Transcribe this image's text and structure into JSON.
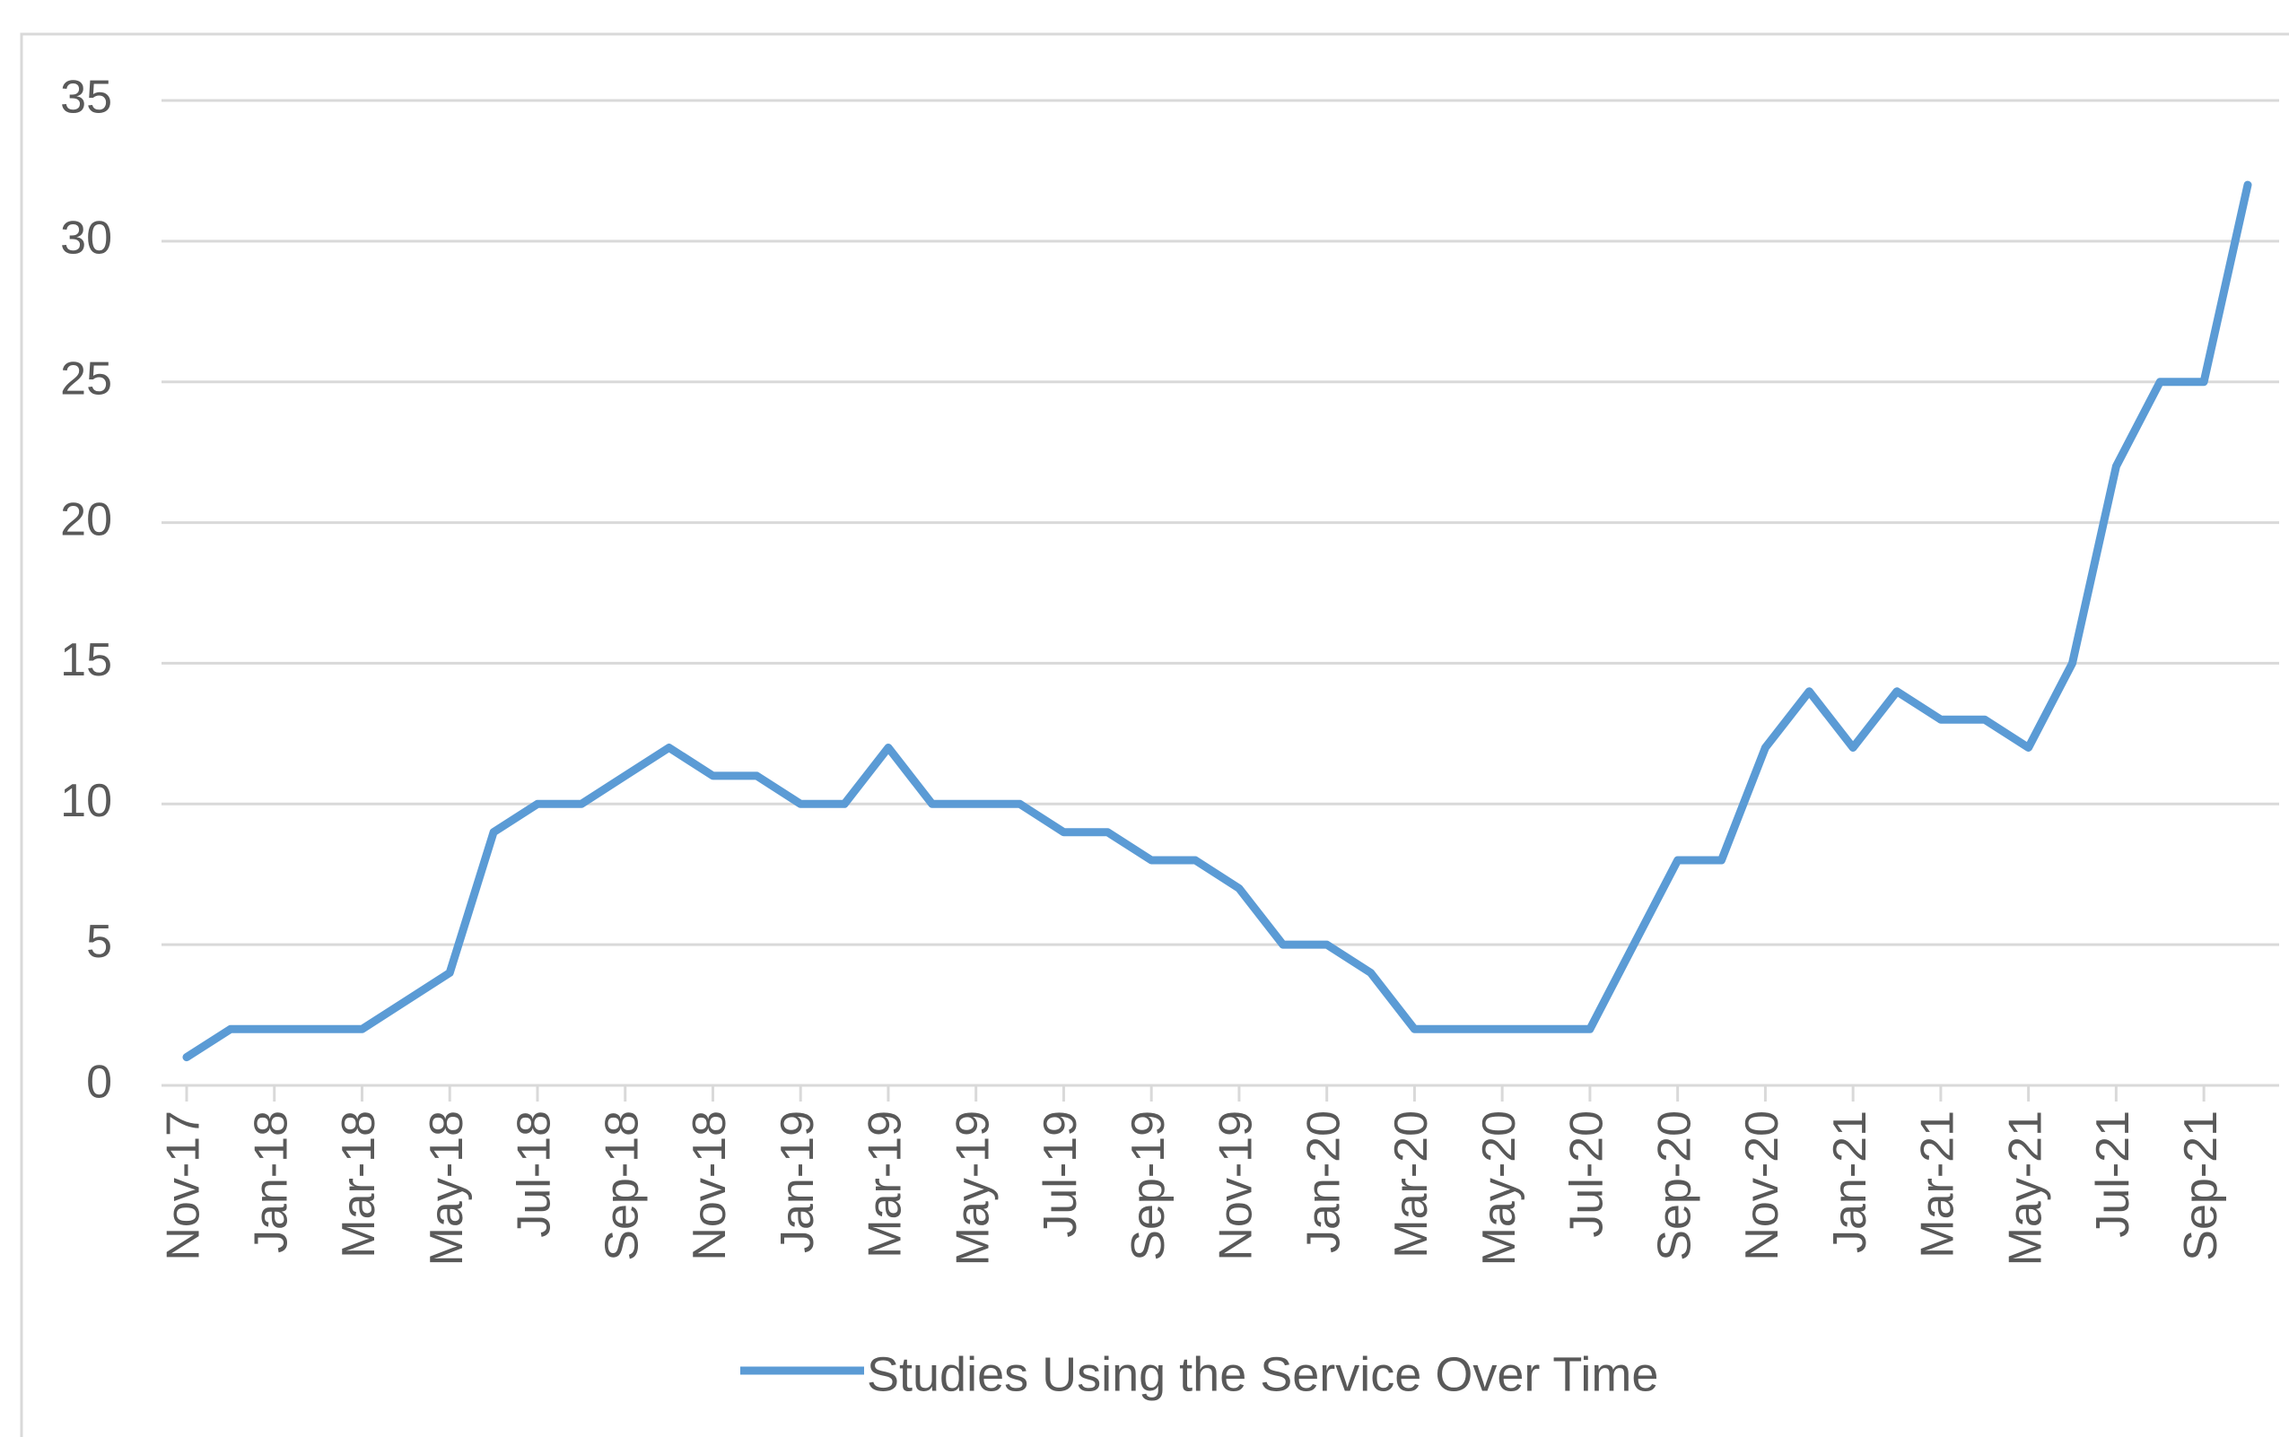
{
  "chart_data": {
    "type": "line",
    "title": "",
    "xlabel": "",
    "ylabel": "",
    "ylim": [
      0,
      35
    ],
    "yticks": [
      0,
      5,
      10,
      15,
      20,
      25,
      30,
      35
    ],
    "grid": "horizontal",
    "legend_position": "bottom",
    "x_labels": [
      "Nov-17",
      "Jan-18",
      "Mar-18",
      "May-18",
      "Jul-18",
      "Sep-18",
      "Nov-18",
      "Jan-19",
      "Mar-19",
      "May-19",
      "Jul-19",
      "Sep-19",
      "Nov-19",
      "Jan-20",
      "Mar-20",
      "May-20",
      "Jul-20",
      "Sep-20",
      "Nov-20",
      "Jan-21",
      "Mar-21",
      "May-21",
      "Jul-21",
      "Sep-21"
    ],
    "x": [
      "Nov-17",
      "Dec-17",
      "Jan-18",
      "Feb-18",
      "Mar-18",
      "Apr-18",
      "May-18",
      "Jun-18",
      "Jul-18",
      "Aug-18",
      "Sep-18",
      "Oct-18",
      "Nov-18",
      "Dec-18",
      "Jan-19",
      "Feb-19",
      "Mar-19",
      "Apr-19",
      "May-19",
      "Jun-19",
      "Jul-19",
      "Aug-19",
      "Sep-19",
      "Oct-19",
      "Nov-19",
      "Dec-19",
      "Jan-20",
      "Feb-20",
      "Mar-20",
      "Apr-20",
      "May-20",
      "Jun-20",
      "Jul-20",
      "Aug-20",
      "Sep-20",
      "Oct-20",
      "Nov-20",
      "Dec-20",
      "Jan-21",
      "Feb-21",
      "Mar-21",
      "Apr-21",
      "May-21",
      "Jun-21",
      "Jul-21",
      "Aug-21",
      "Sep-21",
      "Oct-21"
    ],
    "series": [
      {
        "name": "Studies Using the Service Over Time",
        "color": "#5b9bd5",
        "values": [
          1,
          2,
          2,
          2,
          2,
          3,
          4,
          9,
          10,
          10,
          11,
          12,
          11,
          11,
          10,
          10,
          12,
          10,
          10,
          10,
          9,
          9,
          8,
          8,
          7,
          5,
          5,
          4,
          2,
          2,
          2,
          2,
          2,
          5,
          8,
          8,
          12,
          14,
          12,
          14,
          13,
          13,
          12,
          15,
          22,
          25,
          25,
          32
        ]
      }
    ]
  },
  "colors": {
    "line": "#5b9bd5",
    "grid": "#d9d9d9",
    "text": "#595959",
    "border": "#d9d9d9"
  }
}
